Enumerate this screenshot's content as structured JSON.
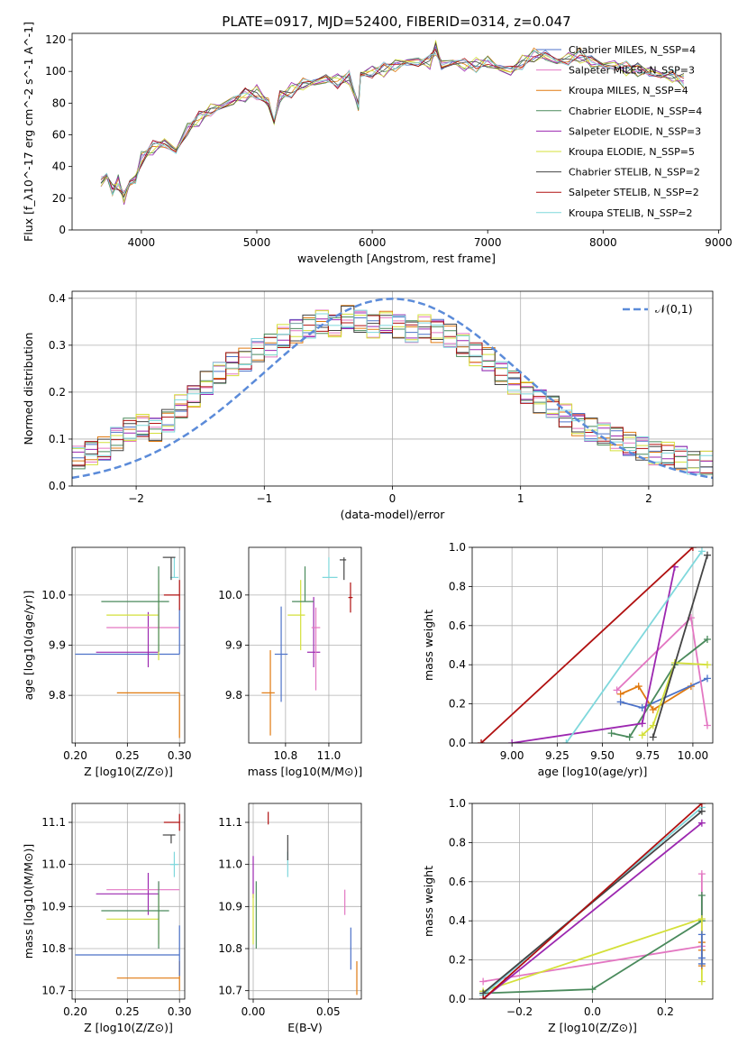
{
  "chart_data": [
    {
      "type": "line",
      "id": "spectrum",
      "title": "PLATE=0917, MJD=52400, FIBERID=0314, z=0.047",
      "xlabel": "wavelength [Angstrom, rest frame]",
      "ylabel": "Flux [f_λ10^-17 erg cm^-2 s^-1 A^-1]",
      "xlim": [
        3400,
        9020
      ],
      "ylim": [
        0,
        124
      ],
      "xticks": [
        4000,
        5000,
        6000,
        7000,
        8000,
        9000
      ],
      "yticks": [
        0,
        20,
        40,
        60,
        80,
        100,
        120
      ],
      "grid": false,
      "legend": "upper right",
      "spectrum_x": [
        3650,
        3700,
        3750,
        3800,
        3850,
        3900,
        3950,
        4000,
        4100,
        4200,
        4300,
        4400,
        4500,
        4600,
        4700,
        4800,
        4900,
        5000,
        5100,
        5150,
        5200,
        5300,
        5400,
        5500,
        5600,
        5700,
        5800,
        5880,
        5900,
        6000,
        6100,
        6200,
        6300,
        6400,
        6500,
        6550,
        6600,
        6700,
        6800,
        6900,
        7000,
        7100,
        7200,
        7300,
        7400,
        7500,
        7600,
        7700,
        7800,
        7900,
        8000,
        8100,
        8200,
        8300,
        8400,
        8500,
        8600,
        8700
      ],
      "spectrum_y": [
        30,
        34,
        25,
        30,
        20,
        30,
        32,
        45,
        52,
        55,
        50,
        64,
        70,
        76,
        78,
        82,
        85,
        87,
        80,
        68,
        84,
        88,
        92,
        93,
        95,
        94,
        96,
        78,
        98,
        100,
        101,
        104,
        106,
        106,
        106,
        115,
        104,
        106,
        104,
        104,
        106,
        102,
        100,
        106,
        110,
        110,
        106,
        108,
        110,
        106,
        104,
        104,
        102,
        101,
        100,
        98,
        97,
        94
      ],
      "series": [
        {
          "name": "Chabrier MILES, N_SSP=4",
          "color": "#4c72c8"
        },
        {
          "name": "Salpeter MILES, N_SSP=3",
          "color": "#e377c2"
        },
        {
          "name": "Kroupa MILES, N_SSP=4",
          "color": "#e07a10"
        },
        {
          "name": "Chabrier ELODIE, N_SSP=4",
          "color": "#4a8a5c"
        },
        {
          "name": "Salpeter ELODIE, N_SSP=3",
          "color": "#9c27b0"
        },
        {
          "name": "Kroupa ELODIE, N_SSP=5",
          "color": "#d4e03a"
        },
        {
          "name": "Chabrier STELIB, N_SSP=2",
          "color": "#444444"
        },
        {
          "name": "Salpeter STELIB, N_SSP=2",
          "color": "#b01010"
        },
        {
          "name": "Kroupa STELIB, N_SSP=2",
          "color": "#7fd8dc"
        }
      ]
    },
    {
      "type": "histogram",
      "id": "residuals",
      "xlabel": "(data-model)/error",
      "ylabel": "Normed distribution",
      "xlim": [
        -2.5,
        2.5
      ],
      "ylim": [
        0,
        0.415
      ],
      "xticks": [
        -2,
        -1,
        0,
        1,
        2
      ],
      "yticks": [
        0.0,
        0.1,
        0.2,
        0.3,
        0.4
      ],
      "grid": true,
      "legend": "upper right",
      "legend_entries": [
        "𝒩(0,1)"
      ],
      "gaussian": {
        "mean": 0,
        "sigma": 1,
        "color": "#5b8bd9"
      },
      "bins": 50,
      "hist_values": [
        0.06,
        0.07,
        0.08,
        0.1,
        0.12,
        0.13,
        0.12,
        0.14,
        0.17,
        0.19,
        0.22,
        0.24,
        0.26,
        0.27,
        0.29,
        0.3,
        0.32,
        0.33,
        0.34,
        0.35,
        0.34,
        0.36,
        0.35,
        0.34,
        0.35,
        0.34,
        0.33,
        0.34,
        0.33,
        0.32,
        0.3,
        0.28,
        0.27,
        0.24,
        0.22,
        0.2,
        0.18,
        0.17,
        0.15,
        0.13,
        0.12,
        0.11,
        0.1,
        0.09,
        0.08,
        0.07,
        0.07,
        0.06,
        0.05,
        0.05
      ]
    },
    {
      "type": "errorbar",
      "id": "age-vs-Z",
      "xlabel": "Z [log10(Z/Z⊙)]",
      "ylabel": "age [log10(age/yr)]",
      "xlim": [
        0.197,
        0.305
      ],
      "ylim": [
        9.705,
        10.095
      ],
      "xticks": [
        0.2,
        0.25,
        0.3
      ],
      "yticks": [
        9.8,
        9.9,
        10.0
      ],
      "grid": true,
      "points": [
        {
          "x": 0.3,
          "y": 9.805,
          "xe": [
            0.06,
            0
          ],
          "ye": [
            0.09,
            0.0
          ],
          "color": "#e07a10"
        },
        {
          "x": 0.3,
          "y": 9.882,
          "xe": [
            0.1,
            0
          ],
          "ye": [
            0,
            0.09
          ],
          "color": "#4c72c8"
        },
        {
          "x": 0.27,
          "y": 9.886,
          "xe": [
            0.05,
            0.01
          ],
          "ye": [
            0.03,
            0.08
          ],
          "color": "#9c27b0"
        },
        {
          "x": 0.28,
          "y": 9.935,
          "xe": [
            0.05,
            0.02
          ],
          "ye": [
            0.0,
            0.04
          ],
          "color": "#e377c2"
        },
        {
          "x": 0.28,
          "y": 9.96,
          "xe": [
            0.05,
            0.0
          ],
          "ye": [
            0.09,
            0.07
          ],
          "color": "#d4e03a"
        },
        {
          "x": 0.28,
          "y": 9.987,
          "xe": [
            0.055,
            0.01
          ],
          "ye": [
            0.1,
            0.07
          ],
          "color": "#4a8a5c"
        },
        {
          "x": 0.3,
          "y": 10.0,
          "xe": [
            0.015,
            0
          ],
          "ye": [
            0.03,
            0.03
          ],
          "color": "#b01010"
        },
        {
          "x": 0.295,
          "y": 10.035,
          "xe": [
            0.004,
            0.004
          ],
          "ye": [
            0.0,
            0.04
          ],
          "color": "#7fd8dc"
        },
        {
          "x": 0.292,
          "y": 10.075,
          "xe": [
            0.008,
            0.004
          ],
          "ye": [
            0.045,
            0.0
          ],
          "color": "#444444"
        }
      ]
    },
    {
      "type": "errorbar",
      "id": "age-vs-mass",
      "xlabel": "mass [log10(M/M⊙)]",
      "ylabel": "",
      "xlim": [
        10.63,
        11.15
      ],
      "ylim": [
        9.705,
        10.095
      ],
      "xticks": [
        10.8,
        11.0
      ],
      "yticks": [
        9.8,
        9.9,
        10.0
      ],
      "grid": true,
      "points": [
        {
          "x": 10.73,
          "y": 9.805,
          "xe": [
            0.04,
            0.02
          ],
          "ye": [
            0.085,
            0.085
          ],
          "color": "#e07a10"
        },
        {
          "x": 10.78,
          "y": 9.882,
          "xe": [
            0.03,
            0.03
          ],
          "ye": [
            0.095,
            0.095
          ],
          "color": "#4c72c8"
        },
        {
          "x": 10.93,
          "y": 9.886,
          "xe": [
            0.03,
            0.03
          ],
          "ye": [
            0.03,
            0.11
          ],
          "color": "#9c27b0"
        },
        {
          "x": 10.94,
          "y": 9.935,
          "xe": [
            0.02,
            0.02
          ],
          "ye": [
            0.125,
            0.04
          ],
          "color": "#e377c2"
        },
        {
          "x": 10.87,
          "y": 9.96,
          "xe": [
            0.06,
            0.02
          ],
          "ye": [
            0.07,
            0.07
          ],
          "color": "#d4e03a"
        },
        {
          "x": 10.89,
          "y": 9.987,
          "xe": [
            0.06,
            0.04
          ],
          "ye": [
            0.0,
            0.07
          ],
          "color": "#4a8a5c"
        },
        {
          "x": 11.1,
          "y": 9.995,
          "xe": [
            0.01,
            0.01
          ],
          "ye": [
            0.03,
            0.03
          ],
          "color": "#b01010"
        },
        {
          "x": 11.0,
          "y": 10.035,
          "xe": [
            0.03,
            0.04
          ],
          "ye": [
            0.0,
            0.04
          ],
          "color": "#7fd8dc"
        },
        {
          "x": 11.07,
          "y": 10.07,
          "xe": [
            0.02,
            0.01
          ],
          "ye": [
            0.04,
            0.005
          ],
          "color": "#444444"
        }
      ]
    },
    {
      "type": "line",
      "id": "weight-vs-age",
      "xlabel": "age [log10(age/yr)]",
      "ylabel": "mass weight",
      "xlim": [
        8.78,
        10.11
      ],
      "ylim": [
        0,
        1.0
      ],
      "xticks": [
        9.0,
        9.25,
        9.5,
        9.75,
        10.0
      ],
      "yticks": [
        0.0,
        0.2,
        0.4,
        0.6,
        0.8,
        1.0
      ],
      "grid": true,
      "series": [
        {
          "color": "#e07a10",
          "x": [
            9.6,
            9.7,
            9.78,
            9.99
          ],
          "y": [
            0.25,
            0.29,
            0.17,
            0.29
          ]
        },
        {
          "color": "#4c72c8",
          "x": [
            9.6,
            9.72,
            10.08
          ],
          "y": [
            0.21,
            0.18,
            0.33
          ]
        },
        {
          "color": "#e377c2",
          "x": [
            9.58,
            9.99,
            10.08
          ],
          "y": [
            0.27,
            0.64,
            0.09
          ]
        },
        {
          "color": "#4a8a5c",
          "x": [
            9.55,
            9.65,
            9.9,
            10.08
          ],
          "y": [
            0.05,
            0.03,
            0.4,
            0.53
          ]
        },
        {
          "color": "#d4e03a",
          "x": [
            9.72,
            9.78,
            9.9,
            10.08
          ],
          "y": [
            0.04,
            0.09,
            0.41,
            0.4
          ]
        },
        {
          "color": "#9c27b0",
          "x": [
            9.0,
            9.72,
            9.9
          ],
          "y": [
            0.0,
            0.1,
            0.9
          ]
        },
        {
          "color": "#7fd8dc",
          "x": [
            9.3,
            10.05
          ],
          "y": [
            0.0,
            0.98
          ]
        },
        {
          "color": "#444444",
          "x": [
            9.78,
            10.08
          ],
          "y": [
            0.03,
            0.96
          ]
        },
        {
          "color": "#b01010",
          "x": [
            8.83,
            10.0
          ],
          "y": [
            0.0,
            1.0
          ]
        }
      ]
    },
    {
      "type": "errorbar",
      "id": "mass-vs-Z",
      "xlabel": "Z [log10(Z/Z⊙)]",
      "ylabel": "mass [log10(M/M⊙)]",
      "xlim": [
        0.197,
        0.305
      ],
      "ylim": [
        10.68,
        11.145
      ],
      "xticks": [
        0.2,
        0.25,
        0.3
      ],
      "yticks": [
        10.7,
        10.8,
        10.9,
        11.0,
        11.1
      ],
      "grid": true,
      "points": [
        {
          "x": 0.3,
          "y": 10.73,
          "xe": [
            0.06,
            0
          ],
          "ye": [
            0.03,
            0.04
          ],
          "color": "#e07a10"
        },
        {
          "x": 0.3,
          "y": 10.785,
          "xe": [
            0.1,
            0
          ],
          "ye": [
            0.05,
            0.07
          ],
          "color": "#4c72c8"
        },
        {
          "x": 0.27,
          "y": 10.93,
          "xe": [
            0.05,
            0.01
          ],
          "ye": [
            0.05,
            0.05
          ],
          "color": "#9c27b0"
        },
        {
          "x": 0.28,
          "y": 10.94,
          "xe": [
            0.05,
            0.02
          ],
          "ye": [
            0.0,
            0.02
          ],
          "color": "#e377c2"
        },
        {
          "x": 0.28,
          "y": 10.87,
          "xe": [
            0.05,
            0.0
          ],
          "ye": [
            0.06,
            0.06
          ],
          "color": "#d4e03a"
        },
        {
          "x": 0.28,
          "y": 10.89,
          "xe": [
            0.055,
            0.01
          ],
          "ye": [
            0.09,
            0.07
          ],
          "color": "#4a8a5c"
        },
        {
          "x": 0.3,
          "y": 11.1,
          "xe": [
            0.015,
            0
          ],
          "ye": [
            0.02,
            0.02
          ],
          "color": "#b01010"
        },
        {
          "x": 0.295,
          "y": 11.0,
          "xe": [
            0.004,
            0.004
          ],
          "ye": [
            0.03,
            0.03
          ],
          "color": "#7fd8dc"
        },
        {
          "x": 0.292,
          "y": 11.07,
          "xe": [
            0.008,
            0.004
          ],
          "ye": [
            0.02,
            0.0
          ],
          "color": "#444444"
        }
      ]
    },
    {
      "type": "errorbar",
      "id": "mass-vs-EBV",
      "xlabel": "E(B-V)",
      "ylabel": "",
      "xlim": [
        -0.003,
        0.072
      ],
      "ylim": [
        10.68,
        11.145
      ],
      "xticks": [
        0.0,
        0.05
      ],
      "yticks": [
        10.7,
        10.8,
        10.9,
        11.0,
        11.1
      ],
      "grid": true,
      "points": [
        {
          "x": 0.069,
          "y": 10.73,
          "xe": [
            0,
            0
          ],
          "ye": [
            0.04,
            0.04
          ],
          "color": "#e07a10"
        },
        {
          "x": 0.065,
          "y": 10.8,
          "xe": [
            0,
            0
          ],
          "ye": [
            0.05,
            0.05
          ],
          "color": "#4c72c8"
        },
        {
          "x": 0.0,
          "y": 10.97,
          "xe": [
            0,
            0
          ],
          "ye": [
            0.05,
            0.05
          ],
          "color": "#9c27b0"
        },
        {
          "x": 0.061,
          "y": 10.91,
          "xe": [
            0,
            0
          ],
          "ye": [
            0.03,
            0.03
          ],
          "color": "#e377c2"
        },
        {
          "x": 0.0,
          "y": 10.87,
          "xe": [
            0,
            0
          ],
          "ye": [
            0.06,
            0.06
          ],
          "color": "#d4e03a"
        },
        {
          "x": 0.002,
          "y": 10.88,
          "xe": [
            0,
            0
          ],
          "ye": [
            0.08,
            0.08
          ],
          "color": "#4a8a5c"
        },
        {
          "x": 0.01,
          "y": 11.11,
          "xe": [
            0,
            0
          ],
          "ye": [
            0.015,
            0.015
          ],
          "color": "#b01010"
        },
        {
          "x": 0.023,
          "y": 11.0,
          "xe": [
            0,
            0
          ],
          "ye": [
            0.03,
            0.03
          ],
          "color": "#7fd8dc"
        },
        {
          "x": 0.023,
          "y": 11.04,
          "xe": [
            0,
            0
          ],
          "ye": [
            0.03,
            0.03
          ],
          "color": "#444444"
        }
      ]
    },
    {
      "type": "line",
      "id": "weight-vs-Z",
      "xlabel": "Z [log10(Z/Z⊙)]",
      "ylabel": "mass weight",
      "xlim": [
        -0.33,
        0.33
      ],
      "ylim": [
        0,
        1.0
      ],
      "xticks": [
        -0.2,
        0.0,
        0.2
      ],
      "yticks": [
        0.0,
        0.2,
        0.4,
        0.6,
        0.8,
        1.0
      ],
      "grid": true,
      "series": [
        {
          "color": "#e377c2",
          "x": [
            -0.3,
            0.3,
            0.3
          ],
          "y": [
            0.09,
            0.27,
            0.64
          ]
        },
        {
          "color": "#4a8a5c",
          "x": [
            -0.3,
            0.0,
            0.3,
            0.3
          ],
          "y": [
            0.03,
            0.05,
            0.4,
            0.53
          ]
        },
        {
          "color": "#d4e03a",
          "x": [
            -0.3,
            0.3,
            0.3
          ],
          "y": [
            0.04,
            0.41,
            0.09
          ]
        },
        {
          "color": "#9c27b0",
          "x": [
            -0.3,
            0.3
          ],
          "y": [
            0.0,
            0.9
          ]
        },
        {
          "color": "#7fd8dc",
          "x": [
            -0.3,
            0.3
          ],
          "y": [
            0.02,
            0.98
          ]
        },
        {
          "color": "#444444",
          "x": [
            -0.3,
            0.3
          ],
          "y": [
            0.03,
            0.96
          ]
        },
        {
          "color": "#b01010",
          "x": [
            -0.3,
            0.3
          ],
          "y": [
            0.0,
            1.0
          ]
        },
        {
          "color": "#e07a10",
          "x": [
            0.3,
            0.3,
            0.3
          ],
          "y": [
            0.25,
            0.29,
            0.17
          ]
        },
        {
          "color": "#4c72c8",
          "x": [
            0.3,
            0.3,
            0.3
          ],
          "y": [
            0.21,
            0.18,
            0.33
          ]
        }
      ]
    }
  ]
}
